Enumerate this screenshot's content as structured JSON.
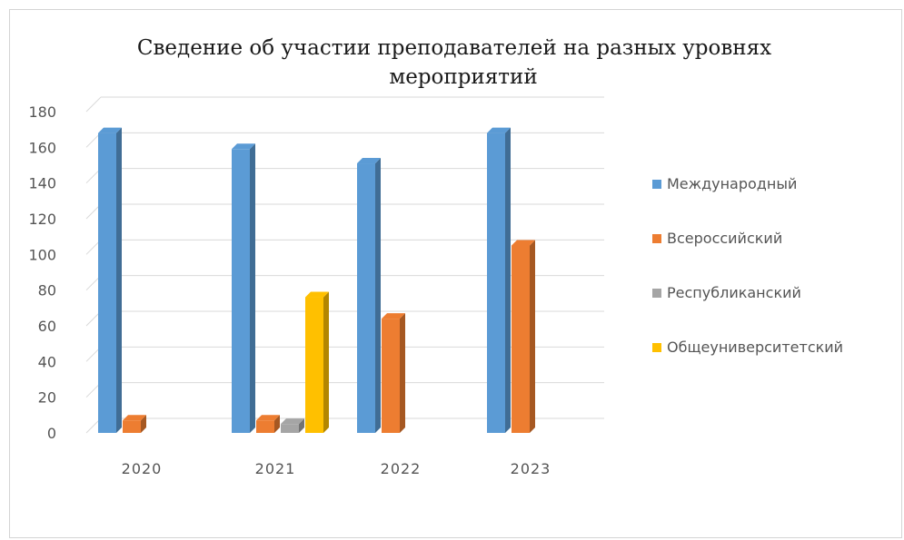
{
  "chart_data": {
    "type": "bar",
    "title_line1": "Сведение об участии преподавателей на разных уровнях",
    "title_line2": "мероприятий",
    "categories": [
      "2020",
      "2021",
      "2022",
      "2023"
    ],
    "series": [
      {
        "name": "Международный",
        "values": [
          168,
          159,
          151,
          168
        ],
        "color": "#5B9BD5"
      },
      {
        "name": "Всероссийский",
        "values": [
          7,
          7,
          64,
          105
        ],
        "color": "#ED7D31"
      },
      {
        "name": "Республиканский",
        "values": [
          0,
          5,
          0,
          0
        ],
        "color": "#A5A5A5"
      },
      {
        "name": "Общеуниверситетский",
        "values": [
          0,
          76,
          0,
          0
        ],
        "color": "#FFC000"
      }
    ],
    "ylim": [
      0,
      180
    ],
    "yticks": [
      "0",
      "20",
      "40",
      "60",
      "80",
      "100",
      "120",
      "140",
      "160",
      "180"
    ],
    "grid": true,
    "legend_position": "right"
  }
}
